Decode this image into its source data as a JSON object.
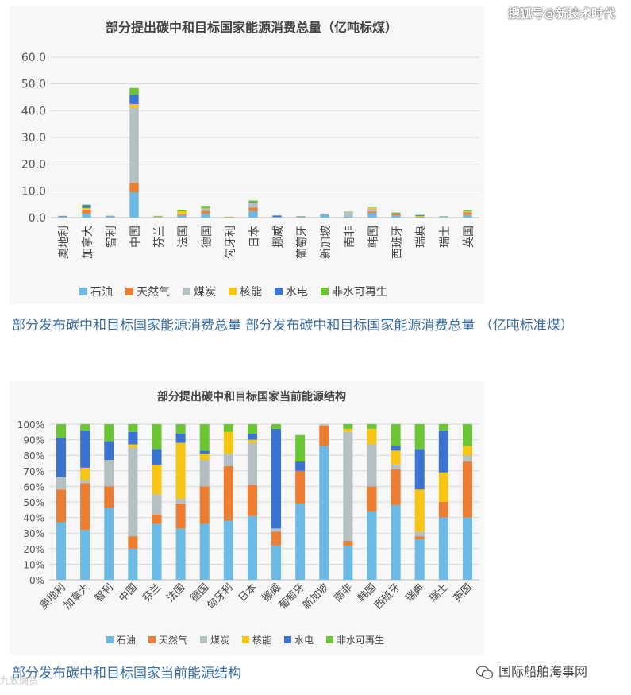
{
  "watermark_top": "搜狐号@新技术时代",
  "watermark_bottom_right": "国际船舶海事网",
  "watermark_bottom_left": "九致确货",
  "caption1": "部分发布碳中和目标国家能源消费总量 部分发布碳中和目标国家能源消费总量 （亿吨标准煤）",
  "caption2": "部分发布碳中和目标国家当前能源结构",
  "colors": {
    "石油": "#6cbbe6",
    "天然气": "#ed7d31",
    "煤炭": "#b4c0c2",
    "核能": "#f7c514",
    "水电": "#3a73d1",
    "非水可再生": "#6cc633"
  },
  "chart_data": [
    {
      "type": "bar",
      "stacked": true,
      "title": "部分提出碳中和目标国家能源消费总量（亿吨标煤）",
      "categories": [
        "奥地利",
        "加拿大",
        "智利",
        "中国",
        "芬兰",
        "法国",
        "德国",
        "匈牙利",
        "日本",
        "挪威",
        "葡萄牙",
        "新加坡",
        "南非",
        "韩国",
        "西班牙",
        "瑞典",
        "瑞士",
        "英国"
      ],
      "ylim": [
        0,
        60
      ],
      "yticks": [
        "0.0",
        "10.0",
        "20.0",
        "30.0",
        "40.0",
        "50.0",
        "60.0"
      ],
      "legend_position": "bottom",
      "series": [
        {
          "name": "石油",
          "values": [
            0.2,
            1.5,
            0.3,
            9.5,
            0.2,
            1.0,
            1.5,
            0.1,
            2.5,
            0.2,
            0.2,
            1.3,
            0.3,
            1.7,
            0.8,
            0.3,
            0.2,
            1.0
          ]
        },
        {
          "name": "天然气",
          "values": [
            0.1,
            1.5,
            0.1,
            3.5,
            0.05,
            0.5,
            1.0,
            0.15,
            1.3,
            0.05,
            0.1,
            0.2,
            0.05,
            0.6,
            0.4,
            0.02,
            0.05,
            1.0
          ]
        },
        {
          "name": "煤炭",
          "values": [
            0.05,
            0.2,
            0.1,
            28.0,
            0.05,
            0.05,
            0.8,
            0.03,
            1.6,
            0.01,
            0.02,
            0.01,
            1.8,
            1.0,
            0.1,
            0.02,
            0.0,
            0.1
          ]
        },
        {
          "name": "核能",
          "values": [
            0.0,
            0.4,
            0.0,
            1.5,
            0.15,
            0.9,
            0.2,
            0.05,
            0.1,
            0.0,
            0.0,
            0.0,
            0.05,
            0.5,
            0.2,
            0.3,
            0.1,
            0.2
          ]
        },
        {
          "name": "水电",
          "values": [
            0.2,
            1.0,
            0.1,
            3.5,
            0.08,
            0.2,
            0.1,
            0.0,
            0.3,
            0.5,
            0.1,
            0.0,
            0.0,
            0.0,
            0.1,
            0.3,
            0.1,
            0.0
          ]
        },
        {
          "name": "非水可再生",
          "values": [
            0.1,
            0.3,
            0.1,
            2.5,
            0.1,
            0.3,
            0.8,
            0.02,
            0.6,
            0.05,
            0.1,
            0.0,
            0.1,
            0.2,
            0.3,
            0.1,
            0.05,
            0.5
          ]
        }
      ]
    },
    {
      "type": "bar",
      "stacked": true,
      "percent": true,
      "title": "部分提出碳中和目标国家当前能源结构",
      "categories": [
        "奥地利",
        "加拿大",
        "智利",
        "中国",
        "芬兰",
        "法国",
        "德国",
        "匈牙利",
        "日本",
        "挪威",
        "葡萄牙",
        "新加坡",
        "南非",
        "韩国",
        "西班牙",
        "瑞典",
        "瑞士",
        "英国"
      ],
      "ylim": [
        0,
        100
      ],
      "yticks": [
        "0%",
        "10%",
        "20%",
        "30%",
        "40%",
        "50%",
        "60%",
        "70%",
        "80%",
        "90%",
        "100%"
      ],
      "legend_position": "bottom",
      "series": [
        {
          "name": "石油",
          "values": [
            37,
            32,
            46,
            20,
            36,
            33,
            36,
            38,
            41,
            22,
            49,
            86,
            22,
            44,
            48,
            26,
            40,
            40
          ]
        },
        {
          "name": "天然气",
          "values": [
            21,
            30,
            14,
            8,
            6,
            16,
            24,
            35,
            20,
            9,
            21,
            13,
            3,
            16,
            23,
            2,
            10,
            36
          ]
        },
        {
          "name": "煤炭",
          "values": [
            8,
            2,
            17,
            57,
            13,
            3,
            17,
            8,
            27,
            2,
            0,
            1,
            70,
            27,
            3,
            3,
            0,
            4
          ]
        },
        {
          "name": "核能",
          "values": [
            0,
            8,
            0,
            2,
            19,
            36,
            4,
            14,
            2,
            0,
            0,
            0,
            2,
            10,
            9,
            27,
            19,
            6
          ]
        },
        {
          "name": "水电",
          "values": [
            25,
            24,
            12,
            8,
            10,
            6,
            2,
            0,
            4,
            64,
            6,
            0,
            0,
            0,
            3,
            26,
            27,
            0
          ]
        },
        {
          "name": "非水可再生",
          "values": [
            9,
            4,
            11,
            5,
            16,
            6,
            17,
            5,
            6,
            3,
            17,
            0,
            3,
            3,
            14,
            16,
            4,
            14
          ]
        }
      ]
    }
  ]
}
